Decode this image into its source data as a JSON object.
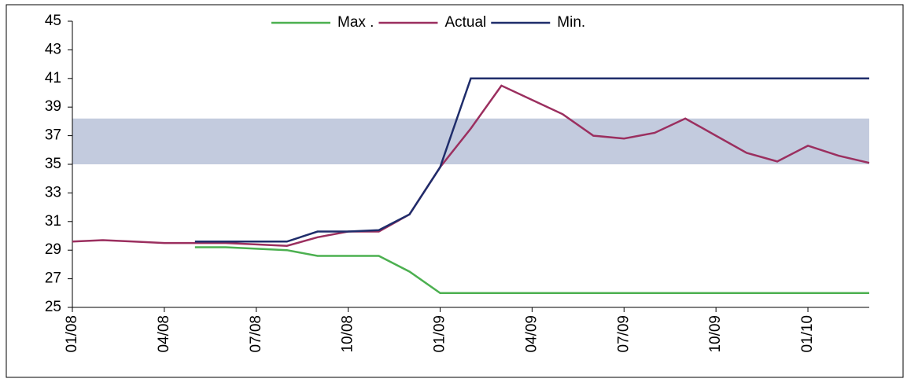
{
  "chart_data": {
    "type": "line",
    "x": [
      "01/08",
      "02/08",
      "03/08",
      "04/08",
      "05/08",
      "06/08",
      "07/08",
      "08/08",
      "09/08",
      "10/08",
      "11/08",
      "12/08",
      "01/09",
      "02/09",
      "03/09",
      "04/09",
      "05/09",
      "06/09",
      "07/09",
      "08/09",
      "09/09",
      "10/09",
      "11/09",
      "12/09",
      "01/10",
      "02/10",
      "03/10"
    ],
    "xticks": [
      "01/08",
      "04/08",
      "07/08",
      "10/08",
      "01/09",
      "04/09",
      "07/09",
      "10/09",
      "01/10"
    ],
    "series": [
      {
        "name": "Max .",
        "color": "#4cb050",
        "values": [
          null,
          null,
          null,
          null,
          29.2,
          29.2,
          29.1,
          29.0,
          28.6,
          28.6,
          28.6,
          27.5,
          26.0,
          26.0,
          26.0,
          26.0,
          26.0,
          26.0,
          26.0,
          26.0,
          26.0,
          26.0,
          26.0,
          26.0,
          26.0,
          26.0,
          26.0
        ]
      },
      {
        "name": "Actual",
        "color": "#9b2f5f",
        "values": [
          29.6,
          29.7,
          29.6,
          29.5,
          29.5,
          29.5,
          29.4,
          29.3,
          29.9,
          30.3,
          30.3,
          31.5,
          34.8,
          37.5,
          40.5,
          39.5,
          38.5,
          37.0,
          36.8,
          37.2,
          38.2,
          37.0,
          35.8,
          35.2,
          36.3,
          35.6,
          35.1
        ]
      },
      {
        "name": "Min.",
        "color": "#1f2d6b",
        "values": [
          null,
          null,
          null,
          null,
          29.6,
          29.6,
          29.6,
          29.6,
          30.3,
          30.3,
          30.4,
          31.5,
          34.8,
          41.0,
          41.0,
          41.0,
          41.0,
          41.0,
          41.0,
          41.0,
          41.0,
          41.0,
          41.0,
          41.0,
          41.0,
          41.0,
          41.0
        ]
      }
    ],
    "band": [
      35,
      38.2
    ],
    "band_color": "#c3cbde",
    "ylim": [
      25,
      45
    ],
    "yticks": [
      25,
      27,
      29,
      31,
      33,
      35,
      37,
      39,
      41,
      43,
      45
    ]
  }
}
